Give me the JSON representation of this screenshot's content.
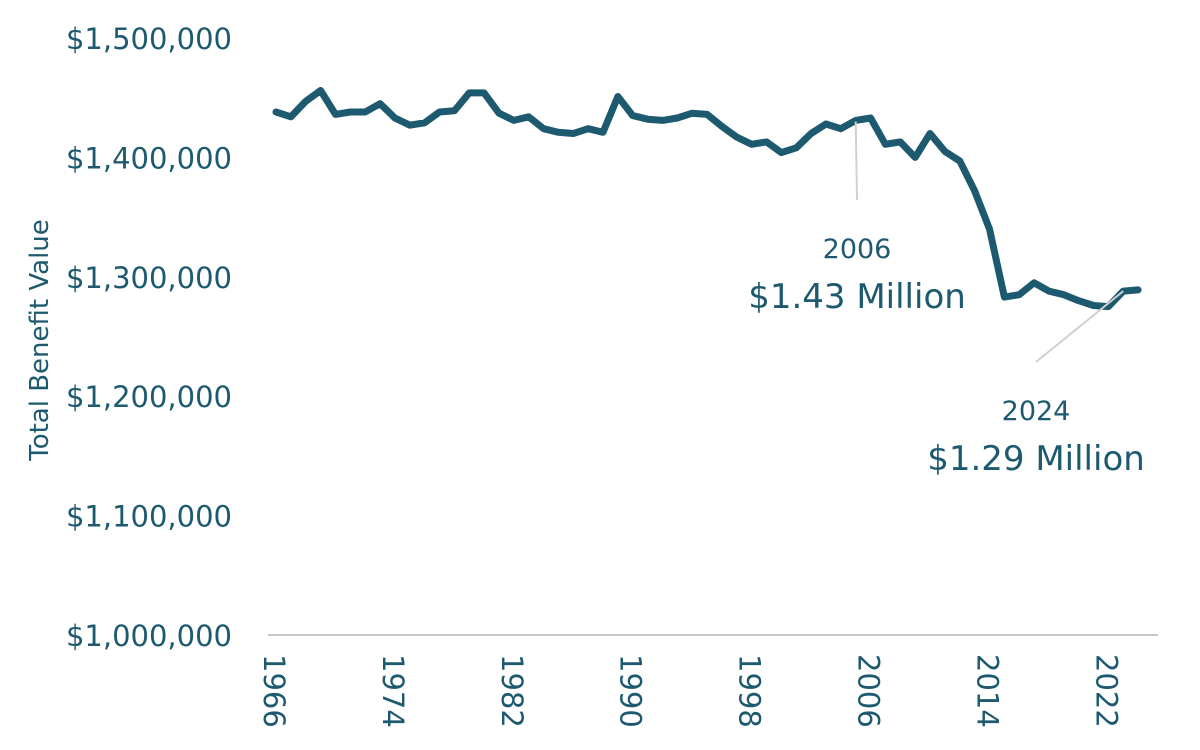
{
  "chart_data": {
    "type": "line",
    "title": "",
    "xlabel": "",
    "ylabel": "Total Benefit Value",
    "ylim": [
      1000000,
      1500000
    ],
    "xlim": [
      1966,
      2025
    ],
    "grid": false,
    "y_ticks": [
      {
        "value": 1500000,
        "label": "$1,500,000"
      },
      {
        "value": 1400000,
        "label": "$1,400,000"
      },
      {
        "value": 1300000,
        "label": "$1,300,000"
      },
      {
        "value": 1200000,
        "label": "$1,200,000"
      },
      {
        "value": 1100000,
        "label": "$1,100,000"
      },
      {
        "value": 1000000,
        "label": "$1,000,000"
      }
    ],
    "x_ticks": [
      {
        "value": 1966,
        "label": "1966"
      },
      {
        "value": 1974,
        "label": "1974"
      },
      {
        "value": 1982,
        "label": "1982"
      },
      {
        "value": 1990,
        "label": "1990"
      },
      {
        "value": 1998,
        "label": "1998"
      },
      {
        "value": 2006,
        "label": "2006"
      },
      {
        "value": 2014,
        "label": "2014"
      },
      {
        "value": 2022,
        "label": "2022"
      }
    ],
    "x": [
      1966,
      1967,
      1968,
      1969,
      1970,
      1971,
      1972,
      1973,
      1974,
      1975,
      1976,
      1977,
      1978,
      1979,
      1980,
      1981,
      1982,
      1983,
      1984,
      1985,
      1986,
      1987,
      1988,
      1989,
      1990,
      1991,
      1992,
      1993,
      1994,
      1995,
      1996,
      1997,
      1998,
      1999,
      2000,
      2001,
      2002,
      2003,
      2004,
      2005,
      2006,
      2007,
      2008,
      2009,
      2010,
      2011,
      2012,
      2013,
      2014,
      2015,
      2016,
      2017,
      2018,
      2019,
      2020,
      2021,
      2022,
      2023,
      2024
    ],
    "series": [
      {
        "color": "#1d5a6f",
        "values": [
          1438000,
          1434000,
          1447000,
          1456000,
          1436000,
          1438000,
          1438000,
          1445000,
          1433000,
          1427000,
          1429000,
          1438000,
          1439000,
          1454000,
          1454000,
          1437000,
          1431000,
          1434000,
          1424000,
          1421000,
          1420000,
          1424000,
          1421000,
          1451000,
          1435000,
          1432000,
          1431000,
          1433000,
          1437000,
          1436000,
          1426000,
          1417000,
          1411000,
          1413000,
          1404000,
          1408000,
          1420000,
          1428000,
          1424000,
          1431000,
          1433000,
          1411000,
          1413000,
          1400000,
          1420000,
          1405000,
          1397000,
          1372000,
          1340000,
          1283000,
          1285000,
          1295000,
          1288000,
          1285000,
          1280000,
          1276000,
          1275000,
          1288000,
          1289000
        ]
      }
    ],
    "annotations": [
      {
        "year": "2006",
        "value": "$1.43 Million",
        "point_x": 2005,
        "point_y": 1430000
      },
      {
        "year": "2024",
        "value": "$1.29 Million",
        "point_x": 2023,
        "point_y": 1288000
      }
    ]
  }
}
